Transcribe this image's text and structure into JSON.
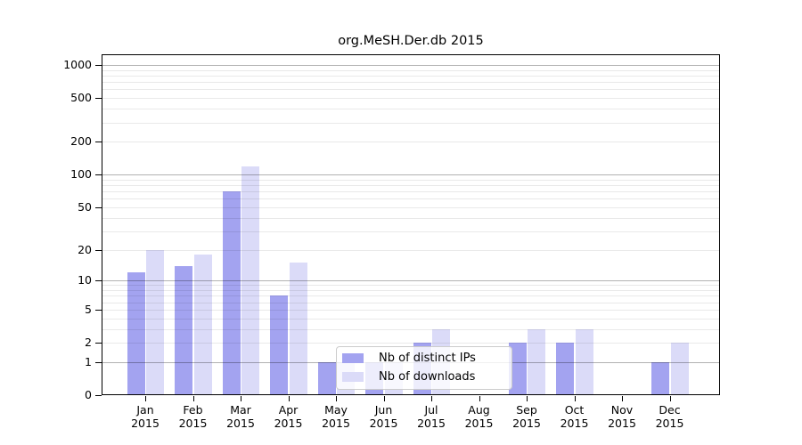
{
  "chart_data": {
    "type": "bar",
    "title": "org.MeSH.Der.db 2015",
    "categories": [
      "Jan 2015",
      "Feb 2015",
      "Mar 2015",
      "Apr 2015",
      "May 2015",
      "Jun 2015",
      "Jul 2015",
      "Aug 2015",
      "Sep 2015",
      "Oct 2015",
      "Nov 2015",
      "Dec 2015"
    ],
    "x_axis": {
      "months": [
        "Jan",
        "Feb",
        "Mar",
        "Apr",
        "May",
        "Jun",
        "Jul",
        "Aug",
        "Sep",
        "Oct",
        "Nov",
        "Dec"
      ],
      "year": "2015"
    },
    "series": [
      {
        "name": "Nb of distinct IPs",
        "color": "#a3a3f0",
        "values": [
          12,
          14,
          70,
          7,
          1,
          1,
          2,
          0,
          2,
          2,
          0,
          1
        ]
      },
      {
        "name": "Nb of downloads",
        "color": "#dbdbf8",
        "values": [
          20,
          18,
          120,
          15,
          1,
          1,
          3,
          0,
          3,
          3,
          0,
          2
        ]
      }
    ],
    "y_axis": {
      "scale": "log1p",
      "ticks": [
        0,
        1,
        2,
        5,
        10,
        20,
        50,
        100,
        200,
        500,
        1000
      ],
      "major_gridlines": [
        1,
        10,
        100,
        1000
      ],
      "minor_gridlines": [
        2,
        3,
        4,
        5,
        6,
        7,
        8,
        9,
        20,
        30,
        40,
        50,
        60,
        70,
        80,
        90,
        200,
        300,
        400,
        500,
        600,
        700,
        800,
        900
      ],
      "ylim": [
        0,
        1240
      ]
    },
    "legend": {
      "position": "inside-bottom-center",
      "items": [
        {
          "label": "Nb of distinct IPs",
          "color": "#a3a3f0"
        },
        {
          "label": "Nb of downloads",
          "color": "#dbdbf8"
        }
      ]
    },
    "grid": true
  },
  "colors": {
    "background": "#ffffff",
    "bar_distinct_ips": "#a3a3f0",
    "bar_downloads": "#dbdbf8",
    "axis_line": "#000000",
    "major_grid": "#b3b3b3",
    "minor_grid": "#eaeaea",
    "legend_border": "#cccccc"
  }
}
